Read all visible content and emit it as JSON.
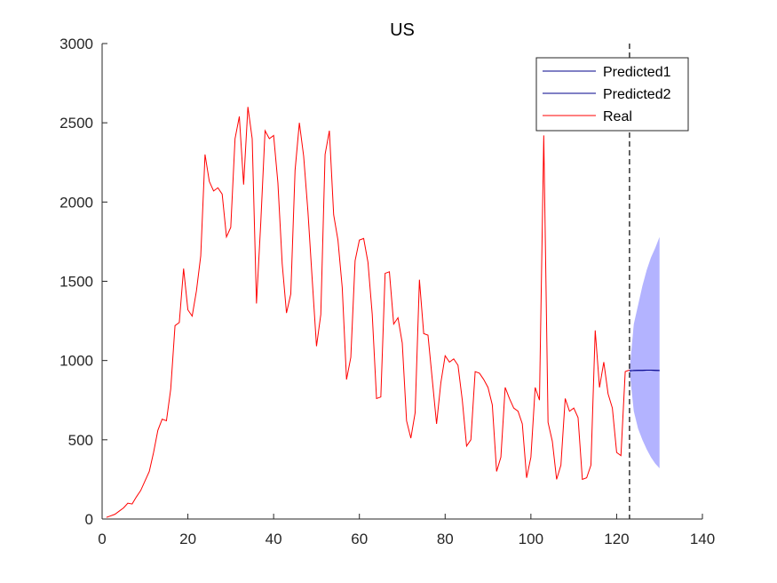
{
  "chart_data": {
    "type": "line",
    "title": "US",
    "xlabel": "",
    "ylabel": "",
    "xlim": [
      0,
      140
    ],
    "ylim": [
      0,
      3000
    ],
    "xticks": [
      0,
      20,
      40,
      60,
      80,
      100,
      120,
      140
    ],
    "yticks": [
      0,
      500,
      1000,
      1500,
      2000,
      2500,
      3000
    ],
    "xtick_labels": [
      "0",
      "20",
      "40",
      "60",
      "80",
      "100",
      "120",
      "140"
    ],
    "ytick_labels": [
      "0",
      "500",
      "1000",
      "1500",
      "2000",
      "2500",
      "3000"
    ],
    "grid": false,
    "legend_position": "top-right",
    "forecast_start": 123,
    "series": [
      {
        "name": "Predicted1",
        "color": "#00008b",
        "x": [
          123,
          124,
          125,
          126,
          127,
          128,
          129,
          130
        ],
        "y": [
          935,
          937,
          938,
          938,
          939,
          939,
          938,
          937
        ]
      },
      {
        "name": "Predicted2",
        "color": "#00008b",
        "x": [
          123,
          124,
          125,
          126,
          127,
          128,
          129,
          130
        ],
        "y": [
          935,
          937,
          938,
          938,
          939,
          939,
          938,
          937
        ]
      },
      {
        "name": "Real",
        "color": "#ff0000",
        "x": [
          1,
          2,
          3,
          4,
          5,
          6,
          7,
          8,
          9,
          10,
          11,
          12,
          13,
          14,
          15,
          16,
          17,
          18,
          19,
          20,
          21,
          22,
          23,
          24,
          25,
          26,
          27,
          28,
          29,
          30,
          31,
          32,
          33,
          34,
          35,
          36,
          37,
          38,
          39,
          40,
          41,
          42,
          43,
          44,
          45,
          46,
          47,
          48,
          49,
          50,
          51,
          52,
          53,
          54,
          55,
          56,
          57,
          58,
          59,
          60,
          61,
          62,
          63,
          64,
          65,
          66,
          67,
          68,
          69,
          70,
          71,
          72,
          73,
          74,
          75,
          76,
          77,
          78,
          79,
          80,
          81,
          82,
          83,
          84,
          85,
          86,
          87,
          88,
          89,
          90,
          91,
          92,
          93,
          94,
          95,
          96,
          97,
          98,
          99,
          100,
          101,
          102,
          103,
          104,
          105,
          106,
          107,
          108,
          109,
          110,
          111,
          112,
          113,
          114,
          115,
          116,
          117,
          118,
          119,
          120,
          121,
          122,
          123
        ],
        "y": [
          10,
          20,
          30,
          50,
          70,
          100,
          95,
          140,
          180,
          240,
          300,
          420,
          560,
          630,
          620,
          820,
          1220,
          1240,
          1580,
          1320,
          1280,
          1440,
          1660,
          2300,
          2130,
          2070,
          2090,
          2050,
          1780,
          1840,
          2400,
          2540,
          2110,
          2600,
          2400,
          1360,
          1870,
          2450,
          2400,
          2420,
          2120,
          1610,
          1300,
          1420,
          2200,
          2500,
          2290,
          1940,
          1510,
          1090,
          1290,
          2300,
          2450,
          1920,
          1760,
          1460,
          880,
          1020,
          1630,
          1760,
          1770,
          1620,
          1290,
          760,
          770,
          1550,
          1560,
          1230,
          1270,
          1110,
          620,
          510,
          670,
          1510,
          1170,
          1160,
          880,
          600,
          860,
          1030,
          990,
          1010,
          970,
          750,
          460,
          500,
          930,
          920,
          880,
          830,
          720,
          300,
          390,
          830,
          760,
          700,
          680,
          600,
          260,
          390,
          830,
          750,
          2420,
          610,
          490,
          250,
          340,
          760,
          680,
          700,
          640,
          250,
          260,
          340,
          1190,
          830,
          990,
          790,
          700,
          420,
          400,
          930,
          940
        ]
      }
    ],
    "uncertainty_band": {
      "color": "#b3b3ff",
      "x": [
        123,
        124,
        125,
        126,
        127,
        128,
        129,
        130
      ],
      "upper": [
        935,
        1230,
        1350,
        1470,
        1570,
        1650,
        1710,
        1780
      ],
      "lower": [
        935,
        680,
        570,
        500,
        440,
        390,
        350,
        320
      ]
    }
  }
}
